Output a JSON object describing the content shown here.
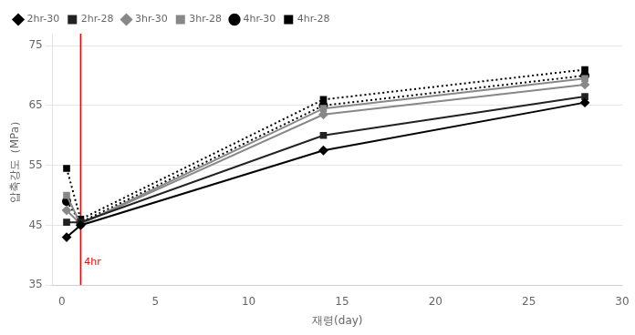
{
  "chart_data": {
    "type": "line",
    "x": [
      0.25,
      1,
      14,
      28
    ],
    "series": [
      {
        "name": "2hr-30",
        "color": "#000000",
        "values": [
          43.0,
          45.0,
          57.5,
          65.5
        ],
        "marker": "diamond",
        "line_style": "solid"
      },
      {
        "name": "2hr-28",
        "color": "#222222",
        "values": [
          45.5,
          45.5,
          60.0,
          66.5
        ],
        "marker": "square",
        "line_style": "solid"
      },
      {
        "name": "3hr-30",
        "color": "#888888",
        "values": [
          47.5,
          45.2,
          63.5,
          68.5
        ],
        "marker": "diamond",
        "line_style": "solid"
      },
      {
        "name": "3hr-28",
        "color": "#888888",
        "values": [
          50.0,
          45.2,
          64.5,
          69.5
        ],
        "marker": "square",
        "line_style": "solid"
      },
      {
        "name": "4hr-30",
        "color": "#000000",
        "values": [
          49.0,
          45.5,
          65.0,
          70.0
        ],
        "marker": "circle",
        "line_style": "dotted"
      },
      {
        "name": "4hr-28",
        "color": "#000000",
        "values": [
          54.5,
          46.0,
          66.0,
          71.0
        ],
        "marker": "square",
        "line_style": "dotted"
      }
    ],
    "xlabel": "재령(day)",
    "ylabel": "압축강도（MPa）",
    "xlim": [
      -0.5,
      30
    ],
    "ylim": [
      35,
      77
    ],
    "xticks": [
      0,
      5,
      10,
      15,
      20,
      25,
      30
    ],
    "yticks": [
      35,
      45,
      55,
      65,
      75
    ],
    "grid": "y",
    "legend": "upper left",
    "annotations": [
      {
        "type": "vline",
        "x": 1.0,
        "text": "4hr",
        "color": "#ff0000"
      }
    ]
  }
}
